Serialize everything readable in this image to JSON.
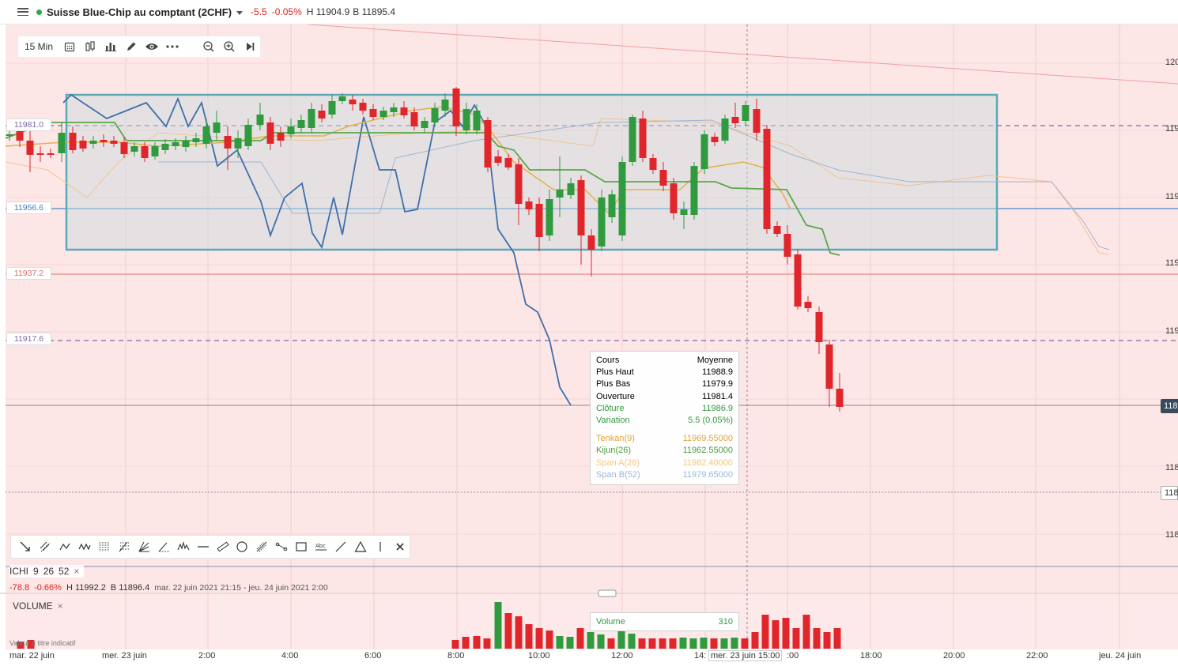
{
  "header": {
    "title": "Suisse Blue-Chip au comptant (2CHF)",
    "change": "-5.5",
    "change_pct": "-0.05%",
    "high": "H 11904.9",
    "low": "B 11895.4",
    "status_color": "#2eaa4a"
  },
  "toolbar": {
    "interval": "15 Min",
    "icons": [
      "calendar-icon",
      "candles-icon",
      "bar-chart-icon",
      "pencil-icon",
      "eye-icon",
      "more-icon",
      "zoom-out-icon",
      "zoom-in-icon",
      "skip-end-icon"
    ]
  },
  "price_labels": [
    {
      "text": "11981.0",
      "color": "#7a6aa6"
    },
    {
      "text": "11956.6",
      "color": "#3d7fc1"
    },
    {
      "text": "11937.2",
      "color": "#e06b5e"
    },
    {
      "text": "11917.6",
      "color": "#7a6aa6"
    }
  ],
  "y_axis": {
    "labels": [
      "120",
      "119",
      "119",
      "119",
      "119",
      "118",
      "118",
      "118"
    ],
    "current_tags": [
      "118",
      "118"
    ]
  },
  "tooltip": {
    "header_left": "Cours",
    "header_right": "Moyenne",
    "rows": [
      {
        "label": "Plus Haut",
        "value": "11988.9"
      },
      {
        "label": "Plus Bas",
        "value": "11979.9"
      },
      {
        "label": "Ouverture",
        "value": "11981.4"
      },
      {
        "label": "Clôture",
        "value": "11986.9"
      },
      {
        "label": "Variation",
        "value": "5.5 (0.05%)"
      }
    ],
    "indicators": [
      {
        "label": "Tenkan(9)",
        "value": "11969.55000"
      },
      {
        "label": "Kijun(26)",
        "value": "11962.55000"
      },
      {
        "label": "Span A(26)",
        "value": "11982.40000"
      },
      {
        "label": "Span B(52)",
        "value": "11979.65000"
      }
    ],
    "colors": {
      "green": "#2f9a3e",
      "tenkan": "#e0a53a",
      "kijun": "#4a9a3e",
      "span_a": "#f2c87a",
      "span_b": "#9bb8d8"
    }
  },
  "ichimoku": {
    "label": "ICHI",
    "p1": "9",
    "p2": "26",
    "p3": "52",
    "close": "×"
  },
  "range_info": {
    "change": "-78.8",
    "change_pct": "-0.66%",
    "high": "H 11992.2",
    "low": "B 11896.4",
    "range": "mar. 22 juin 2021 21:15 - jeu. 24 juin 2021 2:00"
  },
  "volume": {
    "label": "VOLUME",
    "close": "×",
    "tooltip_label": "Volume",
    "tooltip_value": "310",
    "indicative": "Valeur à titre indicatif"
  },
  "x_axis": {
    "labels": [
      "mar. 22 juin",
      "mer. 23 juin",
      "2:00",
      "4:00",
      "6:00",
      "8:00",
      "10:00",
      "12:00",
      "14:",
      "mer. 23 juin 15:00",
      ":00",
      "18:00",
      "20:00",
      "22:00",
      "jeu. 24 juin"
    ]
  },
  "drawing_tools": [
    "trend-line-icon",
    "parallel-channel-icon",
    "polyline-icon",
    "zigzag-icon",
    "horizontal-lines-icon",
    "fibonacci-icon",
    "fan-icon",
    "angle-icon",
    "pattern-icon",
    "horizontal-line-icon",
    "ruler-icon",
    "circle-icon",
    "pitchfork-icon",
    "path-icon",
    "rectangle-icon",
    "text-icon",
    "line-icon",
    "triangle-icon",
    "vertical-line-icon",
    "close-icon"
  ],
  "colors": {
    "up": "#2f9a3e",
    "down": "#e0262b",
    "background_tint": "#fde6e6",
    "selection_box": "#5aa9b8",
    "blue_line": "#3f6fa8",
    "kijun_line": "#5aa64a",
    "tenkan_line": "#e4b04a"
  }
}
